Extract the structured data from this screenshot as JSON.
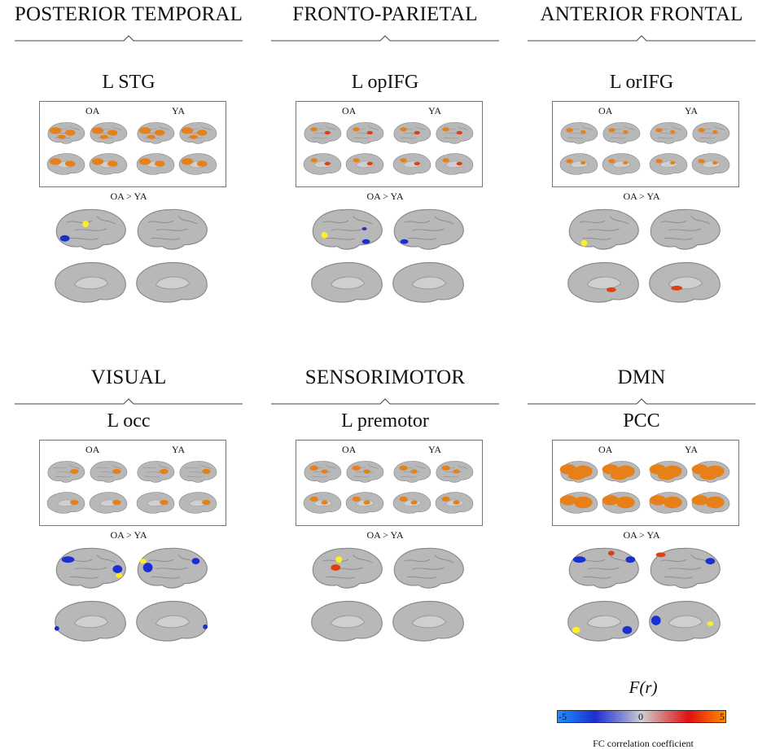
{
  "panels": [
    {
      "network": "POSTERIOR TEMPORAL",
      "roi": "L STG",
      "oa": "OA",
      "ya": "YA",
      "contrast": "OA > YA"
    },
    {
      "network": "FRONTO-PARIETAL",
      "roi": "L opIFG",
      "oa": "OA",
      "ya": "YA",
      "contrast": "OA > YA"
    },
    {
      "network": "ANTERIOR FRONTAL",
      "roi": "L orIFG",
      "oa": "OA",
      "ya": "YA",
      "contrast": "OA > YA"
    },
    {
      "network": "VISUAL",
      "roi": "L occ",
      "oa": "OA",
      "ya": "YA",
      "contrast": "OA > YA"
    },
    {
      "network": "SENSORIMOTOR",
      "roi": "L premotor",
      "oa": "OA",
      "ya": "YA",
      "contrast": "OA > YA"
    },
    {
      "network": "DMN",
      "roi": "PCC",
      "oa": "OA",
      "ya": "YA",
      "contrast": "OA > YA"
    }
  ],
  "legend": {
    "title": "F(r)",
    "min_label": "-5",
    "mid_label": "0",
    "max_label": "5",
    "label": "FC correlation coefficient",
    "colors": {
      "neg_light": "#1e90ff",
      "neg": "#1a2fd0",
      "zero": "#cfcfcf",
      "pos": "#e01010",
      "pos_high": "#ff8c00"
    }
  },
  "colors": {
    "brain": "#b8b8b8",
    "brain_outline": "#8a8a8a",
    "activation": "#e8801a",
    "seed": "#ffee22"
  }
}
